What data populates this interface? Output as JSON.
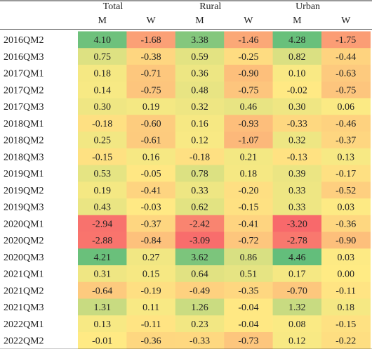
{
  "chart_data": {
    "type": "heatmap",
    "title": "",
    "group_headers": [
      "Total",
      "Rural",
      "Urban"
    ],
    "column_headers": [
      "M",
      "W",
      "M",
      "W",
      "M",
      "W"
    ],
    "rows": [
      "2016QM2",
      "2016QM3",
      "2017QM1",
      "2017QM2",
      "2017QM3",
      "2018QM1",
      "2018QM2",
      "2018QM3",
      "2019QM1",
      "2019QM2",
      "2019QM3",
      "2020QM1",
      "2020QM2",
      "2020QM3",
      "2021QM1",
      "2021QM2",
      "2021QM3",
      "2022QM1",
      "2022QM2"
    ],
    "values": [
      [
        "4.10",
        "-1.68",
        "3.38",
        "-1.46",
        "4.28",
        "-1.75"
      ],
      [
        "0.75",
        "-0.38",
        "0.59",
        "-0.25",
        "0.82",
        "-0.44"
      ],
      [
        "0.18",
        "-0.71",
        "0.36",
        "-0.90",
        "0.10",
        "-0.63"
      ],
      [
        "0.14",
        "-0.75",
        "0.48",
        "-0.75",
        "-0.02",
        "-0.75"
      ],
      [
        "0.30",
        "0.19",
        "0.32",
        "0.46",
        "0.30",
        "0.06"
      ],
      [
        "-0.18",
        "-0.60",
        "0.16",
        "-0.93",
        "-0.33",
        "-0.46"
      ],
      [
        "0.25",
        "-0.61",
        "0.12",
        "-1.07",
        "0.32",
        "-0.37"
      ],
      [
        "-0.15",
        "0.16",
        "-0.18",
        "0.21",
        "-0.13",
        "0.13"
      ],
      [
        "0.53",
        "-0.05",
        "0.78",
        "0.18",
        "0.39",
        "-0.17"
      ],
      [
        "0.19",
        "-0.41",
        "0.33",
        "-0.20",
        "0.33",
        "-0.52"
      ],
      [
        "0.43",
        "-0.03",
        "0.62",
        "-0.15",
        "0.33",
        "0.03"
      ],
      [
        "-2.94",
        "-0.37",
        "-2.42",
        "-0.41",
        "-3.20",
        "-0.36"
      ],
      [
        "-2.88",
        "-0.84",
        "-3.09",
        "-0.72",
        "-2.78",
        "-0.90"
      ],
      [
        "4.21",
        "0.27",
        "3.62",
        "0.86",
        "4.46",
        "0.03"
      ],
      [
        "0.31",
        "0.15",
        "0.64",
        "0.51",
        "0.17",
        "0.00"
      ],
      [
        "-0.64",
        "-0.19",
        "-0.49",
        "-0.35",
        "-0.70",
        "-0.11"
      ],
      [
        "1.31",
        "0.11",
        "1.26",
        "-0.04",
        "1.32",
        "0.18"
      ],
      [
        "0.13",
        "-0.11",
        "0.23",
        "-0.04",
        "0.08",
        "-0.15"
      ],
      [
        "-0.01",
        "-0.36",
        "-0.33",
        "-0.73",
        "0.12",
        "-0.22"
      ]
    ]
  }
}
